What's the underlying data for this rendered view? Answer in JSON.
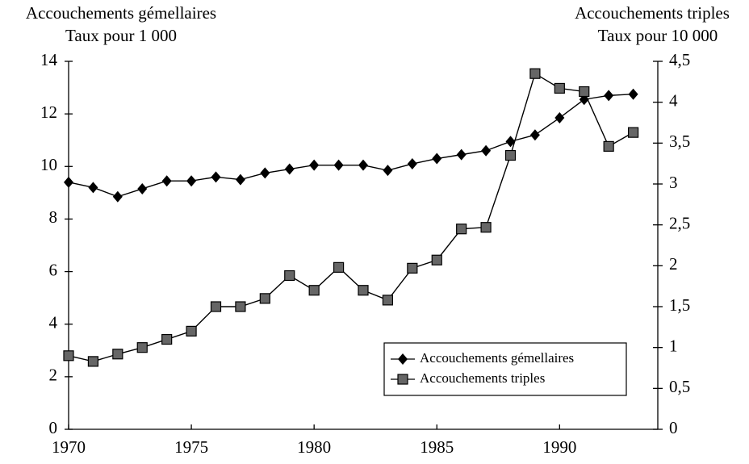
{
  "chart_data": {
    "type": "line",
    "y_axis_title": "Accouchements gémellaires",
    "y_axis_subtitle": "Taux pour 1 000",
    "y2_axis_title": "Accouchements triples",
    "y2_axis_subtitle": "Taux pour 10 000",
    "x": [
      1970,
      1971,
      1972,
      1973,
      1974,
      1975,
      1976,
      1977,
      1978,
      1979,
      1980,
      1981,
      1982,
      1983,
      1984,
      1985,
      1986,
      1987,
      1988,
      1989,
      1990,
      1991,
      1992,
      1993
    ],
    "series": [
      {
        "name": "Accouchements gémellaires",
        "color": "#000000",
        "marker": "diamond",
        "values": [
          9.4,
          9.2,
          8.85,
          9.15,
          9.45,
          9.45,
          9.6,
          9.5,
          9.75,
          9.9,
          10.05,
          10.05,
          10.05,
          9.85,
          10.1,
          10.3,
          10.45,
          10.6,
          10.95,
          11.2,
          11.85,
          12.55,
          12.7,
          12.75
        ]
      },
      {
        "name": "Accouchements triples",
        "color": "#000000",
        "marker": "square",
        "axis": "y2",
        "values": [
          0.9,
          0.83,
          0.92,
          1.0,
          1.1,
          1.2,
          1.5,
          1.5,
          1.6,
          1.88,
          1.7,
          1.98,
          1.7,
          1.58,
          1.97,
          2.07,
          2.45,
          2.47,
          3.35,
          4.35,
          4.17,
          4.13,
          3.46,
          3.63
        ]
      }
    ],
    "xlim": [
      1970,
      1994
    ],
    "xticks": [
      1970,
      1975,
      1980,
      1985,
      1990
    ],
    "ylim": [
      0,
      14
    ],
    "yticks": [
      0,
      2,
      4,
      6,
      8,
      10,
      12,
      14
    ],
    "y2lim": [
      0,
      4.5
    ],
    "y2ticks": [
      0,
      {
        "value": 0.5,
        "label": "0,5"
      },
      1,
      {
        "value": 1.5,
        "label": "1,5"
      },
      2,
      {
        "value": 2.5,
        "label": "2,5"
      },
      3,
      {
        "value": 3.5,
        "label": "3,5"
      },
      4,
      {
        "value": 4.5,
        "label": "4,5"
      }
    ],
    "legend": "lower right",
    "grid": false
  }
}
